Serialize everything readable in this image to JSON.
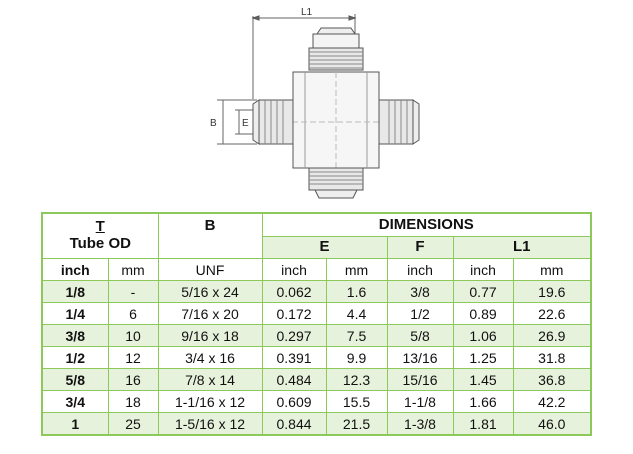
{
  "drawing": {
    "label_l1": "L1",
    "label_b": "B",
    "label_e": "E"
  },
  "table": {
    "header": {
      "t_letter": "T",
      "t_text": "Tube OD",
      "b": "B",
      "dimensions": "DIMENSIONS",
      "e": "E",
      "f": "F",
      "l1": "L1"
    },
    "units": [
      "inch",
      "mm",
      "UNF",
      "inch",
      "mm",
      "inch",
      "inch",
      "mm"
    ],
    "rows": [
      [
        "1/8",
        "-",
        "5/16 x 24",
        "0.062",
        "1.6",
        "3/8",
        "0.77",
        "19.6"
      ],
      [
        "1/4",
        "6",
        "7/16 x 20",
        "0.172",
        "4.4",
        "1/2",
        "0.89",
        "22.6"
      ],
      [
        "3/8",
        "10",
        "9/16 x 18",
        "0.297",
        "7.5",
        "5/8",
        "1.06",
        "26.9"
      ],
      [
        "1/2",
        "12",
        "3/4 x 16",
        "0.391",
        "9.9",
        "13/16",
        "1.25",
        "31.8"
      ],
      [
        "5/8",
        "16",
        "7/8 x 14",
        "0.484",
        "12.3",
        "15/16",
        "1.45",
        "36.8"
      ],
      [
        "3/4",
        "18",
        "1-1/16 x 12",
        "0.609",
        "15.5",
        "1-1/8",
        "1.66",
        "42.2"
      ],
      [
        "1",
        "25",
        "1-5/16 x 12",
        "0.844",
        "21.5",
        "1-3/8",
        "1.81",
        "46.0"
      ]
    ]
  }
}
